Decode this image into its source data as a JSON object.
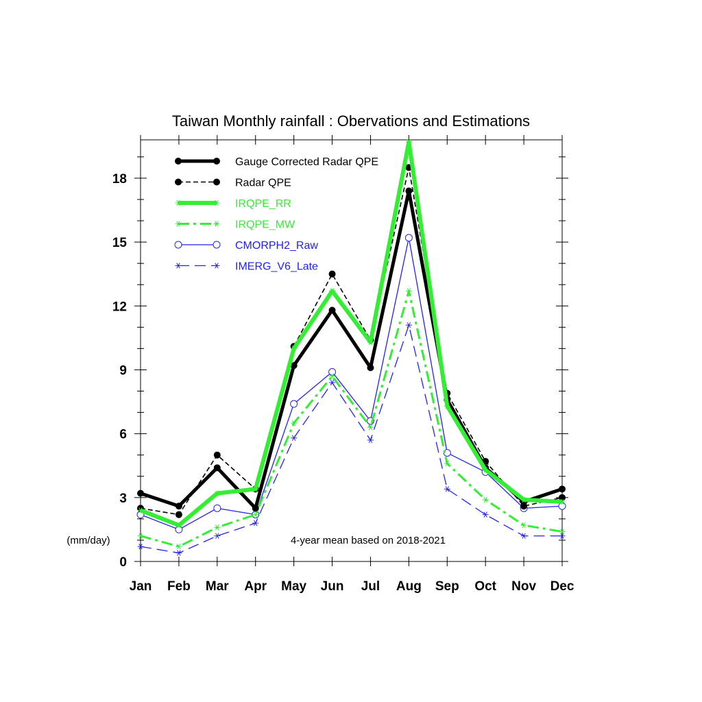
{
  "chart_data": {
    "type": "line",
    "title": "Taiwan Monthly rainfall : Obervations and Estimations",
    "ylabel": "(mm/day)",
    "annotation": "4-year mean based on 2018-2021",
    "categories": [
      "Jan",
      "Feb",
      "Mar",
      "Apr",
      "May",
      "Jun",
      "Jul",
      "Aug",
      "Sep",
      "Oct",
      "Nov",
      "Dec"
    ],
    "ylim": [
      0,
      19.8
    ],
    "yticks": [
      0,
      3,
      6,
      9,
      12,
      15,
      18
    ],
    "grid": false,
    "legend_position": "top-left",
    "series": [
      {
        "name": "Gauge Corrected Radar QPE",
        "color": "#000000",
        "style": "thick-solid-dot",
        "values": [
          3.2,
          2.6,
          4.4,
          2.5,
          9.2,
          11.8,
          9.1,
          17.4,
          7.6,
          4.4,
          2.8,
          3.4
        ]
      },
      {
        "name": "Radar QPE",
        "color": "#000000",
        "style": "thin-dashed-dot",
        "values": [
          2.5,
          2.2,
          5.0,
          3.4,
          10.1,
          13.5,
          10.4,
          18.5,
          7.9,
          4.7,
          2.6,
          3.0
        ]
      },
      {
        "name": "IRQPE_RR",
        "color": "#33ee33",
        "style": "thick-solid",
        "values": [
          2.4,
          1.7,
          3.2,
          3.4,
          10.0,
          12.7,
          10.3,
          19.7,
          7.3,
          4.3,
          2.9,
          2.8
        ]
      },
      {
        "name": "IRQPE_MW",
        "color": "#33ee33",
        "style": "dashdot-star",
        "values": [
          1.2,
          0.7,
          1.6,
          2.2,
          6.5,
          8.7,
          6.3,
          12.7,
          4.6,
          2.9,
          1.7,
          1.4
        ]
      },
      {
        "name": "CMORPH2_Raw",
        "color": "#2222ee",
        "style": "thin-solid-circle",
        "values": [
          2.2,
          1.5,
          2.5,
          2.2,
          7.4,
          8.9,
          6.6,
          15.2,
          5.1,
          4.2,
          2.5,
          2.6
        ]
      },
      {
        "name": "IMERG_V6_Late",
        "color": "#2222ee",
        "style": "long-dash-star",
        "values": [
          0.7,
          0.4,
          1.2,
          1.8,
          5.8,
          8.4,
          5.7,
          11.1,
          3.4,
          2.2,
          1.2,
          1.2
        ]
      }
    ]
  }
}
